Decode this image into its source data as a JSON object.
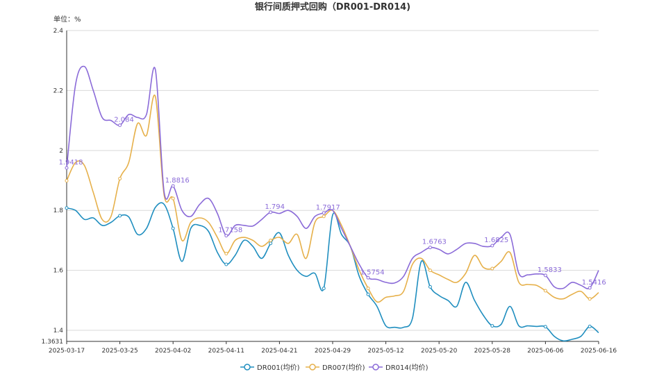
{
  "chart_data": {
    "type": "line",
    "title": "银行间质押式回购（DR001-DR014)",
    "unit_label": "单位：%",
    "x_tick_labels": [
      "2025-03-17",
      "2025-03-25",
      "2025-04-02",
      "2025-04-11",
      "2025-04-21",
      "2025-04-29",
      "2025-05-12",
      "2025-05-20",
      "2025-05-28",
      "2025-06-06",
      "2025-06-16"
    ],
    "y_tick_labels": [
      "1.3631",
      "1.4",
      "1.6",
      "1.8",
      "2",
      "2.2",
      "2.4"
    ],
    "ylim": [
      1.3631,
      2.4
    ],
    "grid": true,
    "legend_position": "bottom",
    "n_points": 61,
    "series": [
      {
        "name": "DR001(均价)",
        "color": "#1f8ebf",
        "values": [
          1.808,
          1.8,
          1.77,
          1.775,
          1.75,
          1.76,
          1.782,
          1.778,
          1.72,
          1.74,
          1.81,
          1.82,
          1.74,
          1.63,
          1.74,
          1.75,
          1.73,
          1.66,
          1.62,
          1.65,
          1.7,
          1.68,
          1.64,
          1.69,
          1.725,
          1.65,
          1.6,
          1.58,
          1.59,
          1.54,
          1.785,
          1.72,
          1.68,
          1.58,
          1.52,
          1.48,
          1.415,
          1.41,
          1.41,
          1.44,
          1.63,
          1.545,
          1.516,
          1.5,
          1.48,
          1.56,
          1.5,
          1.45,
          1.415,
          1.42,
          1.48,
          1.415,
          1.415,
          1.413,
          1.412,
          1.38,
          1.365,
          1.37,
          1.38,
          1.413,
          1.392
        ]
      },
      {
        "name": "DR007(均价)",
        "color": "#e6b04a",
        "values": [
          1.899,
          1.96,
          1.95,
          1.86,
          1.77,
          1.78,
          1.906,
          1.96,
          2.09,
          2.05,
          2.18,
          1.85,
          1.84,
          1.7,
          1.76,
          1.775,
          1.76,
          1.71,
          1.656,
          1.7,
          1.71,
          1.7,
          1.68,
          1.7,
          1.71,
          1.69,
          1.72,
          1.64,
          1.76,
          1.78,
          1.8,
          1.75,
          1.68,
          1.6,
          1.54,
          1.495,
          1.51,
          1.515,
          1.53,
          1.62,
          1.64,
          1.6,
          1.585,
          1.57,
          1.56,
          1.59,
          1.65,
          1.61,
          1.606,
          1.63,
          1.66,
          1.56,
          1.553,
          1.55,
          1.532,
          1.51,
          1.505,
          1.52,
          1.53,
          1.505,
          1.526
        ]
      },
      {
        "name": "DR014(均价)",
        "color": "#8a6ad8",
        "values": [
          1.9418,
          2.22,
          2.28,
          2.2,
          2.11,
          2.1,
          2.084,
          2.12,
          2.11,
          2.12,
          2.27,
          1.86,
          1.8816,
          1.8,
          1.78,
          1.82,
          1.84,
          1.79,
          1.7158,
          1.75,
          1.75,
          1.748,
          1.77,
          1.794,
          1.79,
          1.8,
          1.78,
          1.74,
          1.78,
          1.7917,
          1.8,
          1.74,
          1.68,
          1.62,
          1.5754,
          1.57,
          1.56,
          1.558,
          1.58,
          1.64,
          1.66,
          1.6763,
          1.67,
          1.655,
          1.67,
          1.69,
          1.69,
          1.68,
          1.6825,
          1.71,
          1.72,
          1.59,
          1.585,
          1.588,
          1.5833,
          1.545,
          1.54,
          1.56,
          1.55,
          1.5416,
          1.6
        ]
      }
    ],
    "data_labels": [
      {
        "series": 2,
        "index": 0,
        "text": "1.9418"
      },
      {
        "series": 2,
        "index": 6,
        "text": "2.084"
      },
      {
        "series": 2,
        "index": 12,
        "text": "1.8816"
      },
      {
        "series": 2,
        "index": 18,
        "text": "1.7158"
      },
      {
        "series": 2,
        "index": 23,
        "text": "1.794"
      },
      {
        "series": 2,
        "index": 29,
        "text": "1.7917"
      },
      {
        "series": 2,
        "index": 34,
        "text": "1.5754"
      },
      {
        "series": 2,
        "index": 41,
        "text": "1.6763"
      },
      {
        "series": 2,
        "index": 48,
        "text": "1.6825"
      },
      {
        "series": 2,
        "index": 54,
        "text": "1.5833"
      },
      {
        "series": 2,
        "index": 59,
        "text": "1.5416"
      }
    ],
    "marker_indices": [
      0,
      6,
      12,
      18,
      23,
      29,
      34,
      41,
      48,
      54,
      59
    ]
  }
}
